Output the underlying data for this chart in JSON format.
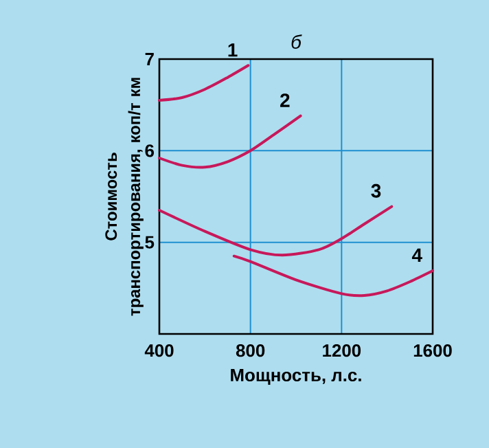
{
  "chart_data": {
    "type": "line",
    "title": "б",
    "xlabel": "Мощность, л.с.",
    "ylabel": "Стоимость транспортирования, коп/т км",
    "xlim": [
      400,
      1600
    ],
    "ylim": [
      4,
      7
    ],
    "xticks": [
      400,
      800,
      1200,
      1600
    ],
    "yticks": [
      5,
      6,
      7
    ],
    "grid": true,
    "legend": false,
    "marker": "none",
    "line_style": "solid",
    "series": [
      {
        "name": "1",
        "color": "#c8185a",
        "x": [
          400,
          500,
          600,
          700,
          790
        ],
        "values": [
          6.55,
          6.58,
          6.67,
          6.8,
          6.93
        ]
      },
      {
        "name": "2",
        "color": "#c8185a",
        "x": [
          400,
          500,
          600,
          700,
          800,
          900,
          1020
        ],
        "values": [
          5.92,
          5.84,
          5.82,
          5.88,
          6.0,
          6.17,
          6.38
        ]
      },
      {
        "name": "3",
        "color": "#c8185a",
        "x": [
          400,
          600,
          800,
          940,
          1100,
          1200,
          1300,
          1420
        ],
        "values": [
          5.35,
          5.12,
          4.92,
          4.86,
          4.92,
          5.04,
          5.2,
          5.39
        ]
      },
      {
        "name": "4",
        "color": "#c8185a",
        "x": [
          728,
          800,
          1000,
          1200,
          1300,
          1400,
          1500,
          1600
        ],
        "values": [
          4.85,
          4.79,
          4.59,
          4.44,
          4.42,
          4.47,
          4.57,
          4.69
        ]
      }
    ]
  }
}
